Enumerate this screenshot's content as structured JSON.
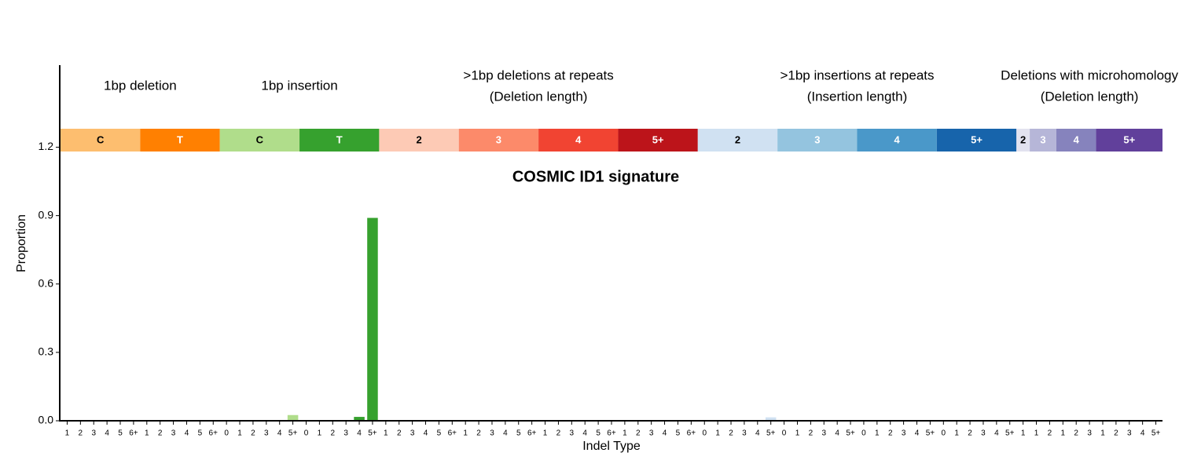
{
  "chart_data": {
    "type": "bar",
    "title": "COSMIC ID1 signature",
    "y_label": "Proportion",
    "x_label": "Indel Type",
    "ylim": [
      0,
      1.56
    ],
    "yticks": [
      {
        "value": 0,
        "label": "0.0"
      },
      0.3,
      0.6,
      0.9,
      1.2
    ],
    "groups": [
      {
        "label_lines": [
          "1bp deletion"
        ],
        "segments": [
          {
            "label": "C",
            "color": "#FDBE6F",
            "text_color": "#000000",
            "categories": [
              "1",
              "2",
              "3",
              "4",
              "5",
              "6+"
            ],
            "values": [
              0.002,
              0.001,
              0.001,
              0.001,
              0.001,
              0.001
            ]
          },
          {
            "label": "T",
            "color": "#FF8001",
            "text_color": "#FFFFFF",
            "categories": [
              "1",
              "2",
              "3",
              "4",
              "5",
              "6+"
            ],
            "values": [
              0.002,
              0.001,
              0.001,
              0.001,
              0.001,
              0.001
            ]
          }
        ]
      },
      {
        "label_lines": [
          "1bp insertion"
        ],
        "segments": [
          {
            "label": "C",
            "color": "#B0DD8B",
            "text_color": "#000000",
            "categories": [
              "0",
              "1",
              "2",
              "3",
              "4",
              "5+"
            ],
            "values": [
              0.001,
              0.001,
              0.001,
              0.001,
              0.002,
              0.025
            ]
          },
          {
            "label": "T",
            "color": "#36A12E",
            "text_color": "#FFFFFF",
            "categories": [
              "0",
              "1",
              "2",
              "3",
              "4",
              "5+"
            ],
            "values": [
              0.001,
              0.001,
              0.001,
              0.002,
              0.017,
              0.89
            ]
          }
        ]
      },
      {
        "label_lines": [
          ">1bp deletions at repeats",
          "(Deletion length)"
        ],
        "segments": [
          {
            "label": "2",
            "color": "#FDCAB5",
            "text_color": "#000000",
            "categories": [
              "1",
              "2",
              "3",
              "4",
              "5",
              "6+"
            ],
            "values": [
              0.001,
              0.001,
              0.001,
              0.001,
              0.001,
              0.001
            ]
          },
          {
            "label": "3",
            "color": "#FC8A6A",
            "text_color": "#FFFFFF",
            "categories": [
              "1",
              "2",
              "3",
              "4",
              "5",
              "6+"
            ],
            "values": [
              0.001,
              0.001,
              0.001,
              0.001,
              0.001,
              0.001
            ]
          },
          {
            "label": "4",
            "color": "#F14432",
            "text_color": "#FFFFFF",
            "categories": [
              "1",
              "2",
              "3",
              "4",
              "5",
              "6+"
            ],
            "values": [
              0.001,
              0.001,
              0.001,
              0.001,
              0.001,
              0.001
            ]
          },
          {
            "label": "5+",
            "color": "#BC141A",
            "text_color": "#FFFFFF",
            "categories": [
              "1",
              "2",
              "3",
              "4",
              "5",
              "6+"
            ],
            "values": [
              0.001,
              0.001,
              0.001,
              0.001,
              0.001,
              0.001
            ]
          }
        ]
      },
      {
        "label_lines": [
          ">1bp insertions at repeats",
          "(Insertion length)"
        ],
        "segments": [
          {
            "label": "2",
            "color": "#D0E1F2",
            "text_color": "#000000",
            "categories": [
              "0",
              "1",
              "2",
              "3",
              "4",
              "5+"
            ],
            "values": [
              0.001,
              0.001,
              0.001,
              0.001,
              0.001,
              0.015
            ]
          },
          {
            "label": "3",
            "color": "#94C4DF",
            "text_color": "#FFFFFF",
            "categories": [
              "0",
              "1",
              "2",
              "3",
              "4",
              "5+"
            ],
            "values": [
              0.001,
              0.001,
              0.001,
              0.001,
              0.001,
              0.001
            ]
          },
          {
            "label": "4",
            "color": "#4A98C9",
            "text_color": "#FFFFFF",
            "categories": [
              "0",
              "1",
              "2",
              "3",
              "4",
              "5+"
            ],
            "values": [
              0.001,
              0.001,
              0.001,
              0.001,
              0.001,
              0.001
            ]
          },
          {
            "label": "5+",
            "color": "#1764AB",
            "text_color": "#FFFFFF",
            "categories": [
              "0",
              "1",
              "2",
              "3",
              "4",
              "5+"
            ],
            "values": [
              0.001,
              0.001,
              0.001,
              0.001,
              0.001,
              0.001
            ]
          }
        ]
      },
      {
        "label_lines": [
          "Deletions with microhomology",
          "(Deletion length)"
        ],
        "segments": [
          {
            "label": "2",
            "color": "#E2E2EF",
            "text_color": "#000000",
            "categories": [
              "1"
            ],
            "values": [
              0.001
            ]
          },
          {
            "label": "3",
            "color": "#B6B6D8",
            "text_color": "#FFFFFF",
            "categories": [
              "1",
              "2"
            ],
            "values": [
              0.001,
              0.001
            ]
          },
          {
            "label": "4",
            "color": "#8683BD",
            "text_color": "#FFFFFF",
            "categories": [
              "1",
              "2",
              "3"
            ],
            "values": [
              0.001,
              0.001,
              0.001
            ]
          },
          {
            "label": "5+",
            "color": "#61409B",
            "text_color": "#FFFFFF",
            "categories": [
              "1",
              "2",
              "3",
              "4",
              "5+"
            ],
            "values": [
              0.001,
              0.001,
              0.001,
              0.001,
              0.001
            ]
          }
        ]
      }
    ]
  }
}
